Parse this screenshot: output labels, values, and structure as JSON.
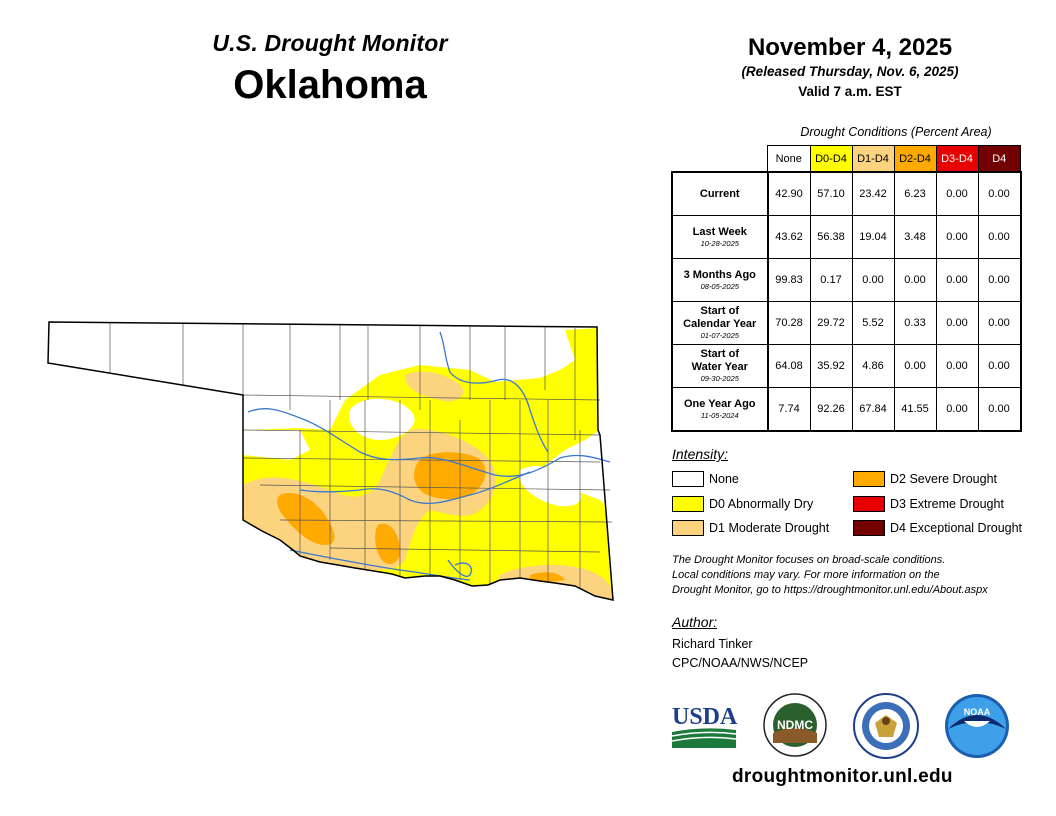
{
  "header": {
    "brand": "U.S. Drought Monitor",
    "state": "Oklahoma",
    "date": "November 4, 2025",
    "released": "(Released Thursday, Nov. 6, 2025)",
    "valid": "Valid 7 a.m. EST"
  },
  "table": {
    "caption": "Drought Conditions (Percent Area)",
    "columns": [
      {
        "label": "None",
        "bg": "#ffffff",
        "fg": "#000000"
      },
      {
        "label": "D0-D4",
        "bg": "#ffff00",
        "fg": "#000000"
      },
      {
        "label": "D1-D4",
        "bg": "#fcd37f",
        "fg": "#000000"
      },
      {
        "label": "D2-D4",
        "bg": "#ffaa00",
        "fg": "#000000"
      },
      {
        "label": "D3-D4",
        "bg": "#e60000",
        "fg": "#ffffff"
      },
      {
        "label": "D4",
        "bg": "#730000",
        "fg": "#ffffff"
      }
    ],
    "rows": [
      {
        "label": [
          "Current"
        ],
        "date": "",
        "values": [
          "42.90",
          "57.10",
          "23.42",
          "6.23",
          "0.00",
          "0.00"
        ]
      },
      {
        "label": [
          "Last Week"
        ],
        "date": "10-28-2025",
        "values": [
          "43.62",
          "56.38",
          "19.04",
          "3.48",
          "0.00",
          "0.00"
        ]
      },
      {
        "label": [
          "3 Months Ago"
        ],
        "date": "08-05-2025",
        "values": [
          "99.83",
          "0.17",
          "0.00",
          "0.00",
          "0.00",
          "0.00"
        ]
      },
      {
        "label": [
          "Start of",
          "Calendar Year"
        ],
        "date": "01-07-2025",
        "values": [
          "70.28",
          "29.72",
          "5.52",
          "0.33",
          "0.00",
          "0.00"
        ]
      },
      {
        "label": [
          "Start of",
          "Water Year"
        ],
        "date": "09-30-2025",
        "values": [
          "64.08",
          "35.92",
          "4.86",
          "0.00",
          "0.00",
          "0.00"
        ]
      },
      {
        "label": [
          "One Year Ago"
        ],
        "date": "11-05-2024",
        "values": [
          "7.74",
          "92.26",
          "67.84",
          "41.55",
          "0.00",
          "0.00"
        ]
      }
    ]
  },
  "legend": {
    "title": "Intensity:",
    "items": [
      {
        "label": "None",
        "color": "#ffffff"
      },
      {
        "label": "D0 Abnormally Dry",
        "color": "#ffff00"
      },
      {
        "label": "D1 Moderate Drought",
        "color": "#fcd37f"
      },
      {
        "label": "D2 Severe Drought",
        "color": "#ffaa00"
      },
      {
        "label": "D3 Extreme Drought",
        "color": "#e60000"
      },
      {
        "label": "D4 Exceptional Drought",
        "color": "#730000"
      }
    ]
  },
  "note": {
    "line1": "The Drought Monitor focuses on broad-scale conditions.",
    "line2": "Local conditions may vary. For more information on the",
    "line3": "Drought Monitor, go to https://droughtmonitor.unl.edu/About.aspx"
  },
  "author": {
    "label": "Author:",
    "name": "Richard Tinker",
    "org": "CPC/NOAA/NWS/NCEP"
  },
  "logos": {
    "usda": "USDA",
    "ndmc": "NDMC",
    "noaa": "NOAA"
  },
  "footer": {
    "site": "droughtmonitor.unl.edu"
  },
  "map": {
    "state_outline_color": "#000000",
    "river_color": "#3a78d0",
    "county_line_color": "#555555"
  }
}
